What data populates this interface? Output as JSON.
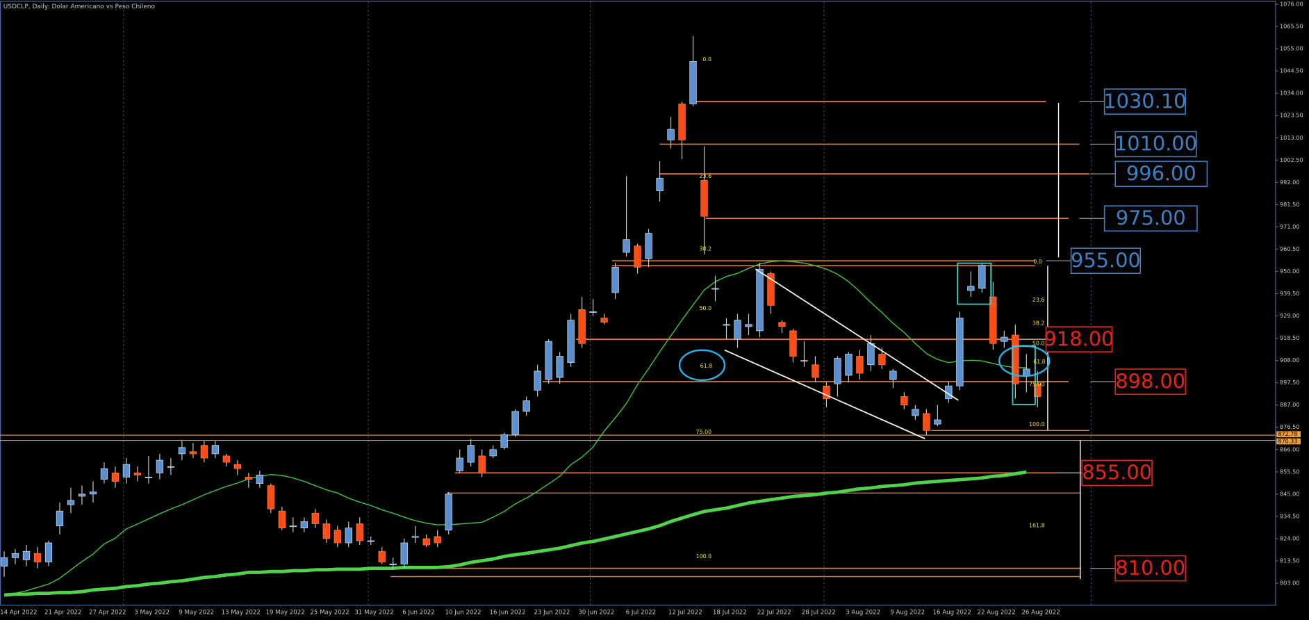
{
  "chart_data": {
    "type": "candlestick",
    "title": "USDCLP, Daily:  Dolar Americano vs Peso Chileno",
    "categories": [
      null,
      "14 Apr 2022",
      null,
      null,
      null,
      "21 Apr 2022",
      null,
      null,
      null,
      "27 Apr 2022",
      null,
      null,
      null,
      "3 May 2022",
      null,
      null,
      null,
      "9 May 2022",
      null,
      null,
      null,
      "13 May 2022",
      null,
      null,
      null,
      "19 May 2022",
      null,
      null,
      null,
      "25 May 2022",
      null,
      null,
      null,
      "31 May 2022",
      null,
      null,
      null,
      "6 Jun 2022",
      null,
      null,
      null,
      "10 Jun 2022",
      null,
      null,
      null,
      "16 Jun 2022",
      null,
      null,
      null,
      "23 Jun 2022",
      null,
      null,
      null,
      "30 Jun 2022",
      null,
      null,
      null,
      "6 Jul 2022",
      null,
      null,
      null,
      "12 Jul 2022",
      null,
      null,
      null,
      "18 Jul 2022",
      null,
      null,
      null,
      "22 Jul 2022",
      null,
      null,
      null,
      "28 Jul 2022",
      null,
      null,
      null,
      "3 Aug 2022",
      null,
      null,
      null,
      "9 Aug 2022",
      null,
      null,
      null,
      "16 Aug 2022",
      null,
      null,
      null,
      "22 Aug 2022",
      null,
      null,
      null,
      "26 Aug 2022"
    ],
    "open": [
      811,
      815,
      814,
      817,
      813,
      830,
      840,
      844,
      845,
      852,
      855,
      853,
      855,
      853,
      855,
      858,
      864,
      865,
      868,
      864,
      863,
      859,
      853,
      850,
      849,
      837,
      830,
      829,
      836,
      831,
      828,
      822,
      831,
      823,
      818,
      812,
      812,
      825,
      824,
      825,
      828,
      856,
      860,
      863,
      863,
      867,
      873,
      884,
      894,
      899,
      900,
      907,
      932,
      931,
      928,
      940,
      959,
      962,
      956,
      988,
      1012,
      1029,
      1029,
      993,
      942,
      925,
      918,
      924,
      922,
      949,
      926,
      922,
      908,
      906,
      896,
      897,
      901,
      910,
      906,
      911,
      899,
      891,
      882,
      883,
      878,
      890,
      896,
      941,
      942,
      938,
      917,
      920,
      901,
      897
    ],
    "high": [
      818,
      819,
      821,
      820,
      823,
      841,
      848,
      849,
      851,
      860,
      858,
      862,
      858,
      863,
      864,
      862,
      870,
      869,
      870,
      870,
      864,
      861,
      855,
      856,
      850,
      839,
      834,
      834,
      838,
      833,
      830,
      832,
      834,
      825,
      820,
      815,
      824,
      830,
      826,
      828,
      846,
      866,
      871,
      866,
      868,
      874,
      885,
      891,
      906,
      918,
      912,
      930,
      938,
      937,
      930,
      954,
      995,
      963,
      970,
      1002,
      1023,
      1030,
      1061,
      1009,
      948,
      928,
      930,
      930,
      954,
      950,
      927,
      923,
      917,
      910,
      898,
      910,
      912,
      913,
      920,
      914,
      904,
      893,
      887,
      885,
      887,
      898,
      931,
      950,
      954,
      945,
      922,
      925,
      911,
      903
    ],
    "low": [
      806,
      812,
      811,
      810,
      811,
      826,
      836,
      840,
      841,
      850,
      848,
      850,
      851,
      850,
      852,
      854,
      861,
      862,
      860,
      862,
      858,
      854,
      848,
      848,
      836,
      828,
      827,
      827,
      829,
      822,
      820,
      820,
      821,
      821,
      812,
      810,
      810,
      822,
      820,
      820,
      826,
      855,
      858,
      853,
      862,
      866,
      872,
      882,
      891,
      897,
      897,
      905,
      914,
      929,
      925,
      937,
      957,
      949,
      952,
      983,
      1008,
      1003,
      1028,
      958,
      936,
      918,
      914,
      920,
      919,
      930,
      921,
      907,
      905,
      898,
      886,
      891,
      898,
      899,
      903,
      904,
      895,
      885,
      880,
      873,
      877,
      888,
      894,
      938,
      940,
      913,
      914,
      890,
      893,
      886
    ],
    "close": [
      815,
      817,
      818,
      813,
      822,
      837,
      842,
      845,
      846,
      857,
      851,
      859,
      854,
      853,
      861,
      858,
      867,
      864,
      862,
      868,
      860,
      857,
      852,
      854,
      838,
      829,
      830,
      832,
      831,
      824,
      822,
      829,
      823,
      823,
      813,
      812,
      822,
      825,
      821,
      822,
      845,
      862,
      868,
      855,
      866,
      873,
      884,
      889,
      903,
      917,
      910,
      927,
      916,
      931,
      926,
      952,
      965,
      952,
      968,
      994,
      1017,
      1012,
      1049,
      976,
      942,
      925,
      927,
      925,
      951,
      934,
      924,
      910,
      908,
      900,
      890,
      909,
      911,
      902,
      916,
      906,
      903,
      887,
      885,
      875,
      880,
      896,
      928,
      943,
      953,
      916,
      919,
      897,
      904,
      891
    ],
    "up_color": "#5a8fd0",
    "down_color": "#ff4b14",
    "lines": [
      {
        "color": "#3cc43c",
        "width": 1.2,
        "values": [
          797.0,
          798.2,
          799.4,
          801.0,
          802.6,
          805.3,
          809.3,
          813.2,
          816.7,
          821.5,
          824.2,
          828.6,
          830.9,
          833.3,
          835.7,
          838.0,
          840.0,
          842.3,
          844.7,
          846.7,
          848.6,
          850.2,
          852.2,
          853.4,
          854.2,
          853.8,
          852.6,
          851.0,
          849.0,
          847.0,
          845.5,
          843.1,
          841.2,
          839.6,
          837.6,
          836.0,
          834.1,
          832.5,
          831.3,
          830.5,
          830.5,
          830.9,
          831.3,
          831.7,
          834.1,
          836.8,
          840.4,
          843.1,
          846.3,
          849.8,
          853.4,
          858.9,
          862.4,
          867.2,
          874.7,
          881.0,
          887.7,
          896.7,
          904.2,
          912.1,
          919.6,
          927.1,
          934.2,
          941.2,
          945.2,
          947.6,
          949.1,
          951.5,
          953.5,
          954.6,
          955.0,
          954.6,
          953.9,
          952.7,
          951.1,
          948.7,
          945.2,
          940.5,
          935.3,
          930.6,
          925.5,
          921.2,
          916.0,
          911.3,
          908.5,
          907.0,
          907.8,
          908.1,
          907.8,
          906.6,
          905.4,
          904.6,
          904.6,
          null
        ]
      },
      {
        "color": "#4fd34a",
        "width": 4,
        "values": [
          797.4,
          797.8,
          797.8,
          798.2,
          798.2,
          798.6,
          798.6,
          799.0,
          799.8,
          800.2,
          800.6,
          801.4,
          801.8,
          802.6,
          803.0,
          803.7,
          804.1,
          804.9,
          805.7,
          806.1,
          806.9,
          807.3,
          808.1,
          808.1,
          808.5,
          808.5,
          808.9,
          808.9,
          809.3,
          809.3,
          809.6,
          809.6,
          809.6,
          810.0,
          810.0,
          810.0,
          810.4,
          810.4,
          810.4,
          810.4,
          810.8,
          811.6,
          812.8,
          813.6,
          814.4,
          815.6,
          816.4,
          817.1,
          817.9,
          818.7,
          819.5,
          820.7,
          821.9,
          822.7,
          823.8,
          825.0,
          826.2,
          827.4,
          828.6,
          830.1,
          832.1,
          833.7,
          835.3,
          836.8,
          837.6,
          838.4,
          839.6,
          840.8,
          841.6,
          842.4,
          843.1,
          843.9,
          844.3,
          844.7,
          845.5,
          845.9,
          846.7,
          847.5,
          847.9,
          848.6,
          849.0,
          849.4,
          850.2,
          850.6,
          851.0,
          851.4,
          851.8,
          852.2,
          852.6,
          853.4,
          853.8,
          854.6,
          855.4,
          null
        ]
      }
    ],
    "ylim": [
      792.6,
      1077.2
    ],
    "yticks": [
      {
        "value": 1076,
        "label": "1076.00"
      },
      {
        "value": 1065.5,
        "label": "1065.50"
      },
      {
        "value": 1055,
        "label": "1055.00"
      },
      {
        "value": 1044.5,
        "label": "1044.50"
      },
      {
        "value": 1034,
        "label": "1034.00"
      },
      {
        "value": 1023.5,
        "label": "1023.50"
      },
      {
        "value": 1013,
        "label": "1013.00"
      },
      {
        "value": 1002.5,
        "label": "1002.50"
      },
      {
        "value": 992,
        "label": "992.00"
      },
      {
        "value": 981.5,
        "label": "981.50"
      },
      {
        "value": 971,
        "label": "971.00"
      },
      {
        "value": 960.5,
        "label": "960.50"
      },
      {
        "value": 950,
        "label": "950.00"
      },
      {
        "value": 939.5,
        "label": "939.50"
      },
      {
        "value": 929,
        "label": "929.00"
      },
      {
        "value": 918.5,
        "label": "918.50"
      },
      {
        "value": 908,
        "label": "908.00"
      },
      {
        "value": 897.5,
        "label": "897.50"
      },
      {
        "value": 887,
        "label": "887.00"
      },
      {
        "value": 876.5,
        "label": "876.50"
      },
      {
        "value": 866,
        "label": "866.00"
      },
      {
        "value": 855.5,
        "label": "855.50"
      },
      {
        "value": 845,
        "label": "845.00"
      },
      {
        "value": 834.5,
        "label": "834.50"
      },
      {
        "value": 824,
        "label": "824.00"
      },
      {
        "value": 813.5,
        "label": "813.50"
      },
      {
        "value": 803,
        "label": "803.00"
      }
    ],
    "grid": false,
    "levels": [
      {
        "value": 1030.1,
        "label": "1030.10",
        "color": "#3f80c4"
      },
      {
        "value": 1010,
        "label": "1010.00",
        "color": "#3f80c4"
      },
      {
        "value": 996,
        "label": "996.00",
        "color": "#3f80c4"
      },
      {
        "value": 975,
        "label": "975.00",
        "color": "#3f80c4"
      },
      {
        "value": 955,
        "label": "955.00",
        "color": "#3f80c4"
      },
      {
        "value": 918,
        "label": "918.00",
        "color": "#e8221a"
      },
      {
        "value": 898,
        "label": "898.00",
        "color": "#e8221a"
      },
      {
        "value": 855,
        "label": "855.00",
        "color": "#e8221a"
      },
      {
        "value": 810,
        "label": "810.00",
        "color": "#e8221a"
      }
    ],
    "level_line_color": "#e8792e",
    "extra_levels": [
      952.7,
      875,
      845.5,
      806.1
    ],
    "current_prices": [
      872.78,
      870.33
    ],
    "current_color": "#f0a030",
    "annotations": [
      "0.0",
      "23.6",
      "38.2",
      "50.0",
      "61.8",
      "75.00",
      "100.0",
      "0.0",
      "23.6",
      "38.2",
      "50.0",
      "61.8",
      "75.00",
      "100.0",
      "161.8"
    ],
    "annotation_color": "#e8e020"
  }
}
